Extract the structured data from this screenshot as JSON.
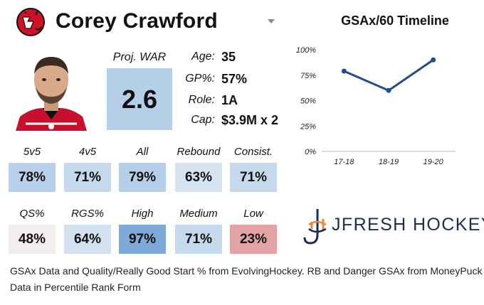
{
  "player": {
    "name": "Corey Crawford",
    "proj_war_label": "Proj. WAR",
    "proj_war": "2.6"
  },
  "info": {
    "age_label": "Age:",
    "age": "35",
    "gp_label": "GP%:",
    "gp": "57%",
    "role_label": "Role:",
    "role": "1A",
    "cap_label": "Cap:",
    "cap": "$3.9M x 2"
  },
  "stats_row1": [
    {
      "label": "5v5",
      "value": "78%",
      "color": "#b9d0ea"
    },
    {
      "label": "4v5",
      "value": "71%",
      "color": "#c5d8ec"
    },
    {
      "label": "All",
      "value": "79%",
      "color": "#b6cfe9"
    },
    {
      "label": "Rebound",
      "value": "63%",
      "color": "#d6e3f1"
    },
    {
      "label": "Consist.",
      "value": "71%",
      "color": "#c5d8ec"
    }
  ],
  "stats_row2": [
    {
      "label": "QS%",
      "value": "48%",
      "color": "#f2eeee"
    },
    {
      "label": "RGS%",
      "value": "64%",
      "color": "#d2e0f0"
    },
    {
      "label": "High",
      "value": "97%",
      "color": "#7ea9d8"
    },
    {
      "label": "Medium",
      "value": "71%",
      "color": "#c5d8ec"
    },
    {
      "label": "Low",
      "value": "23%",
      "color": "#e3a3a4"
    }
  ],
  "war_box_color": "#b6cfe9",
  "brand": {
    "text": "JFRESH HOCKEY",
    "logo_icon": "jfresh-logo-icon",
    "team_logo_icon": "devils-logo-icon"
  },
  "footer": {
    "line1": "GSAx Data and Quality/Really Good Start % from EvolvingHockey. RB and Danger GSAx from MoneyPuck",
    "line2": "Data in Percentile Rank Form"
  },
  "chart_data": {
    "type": "line",
    "title": "GSAx/60 Timeline",
    "categories": [
      "17-18",
      "18-19",
      "19-20"
    ],
    "values": [
      79,
      60,
      90
    ],
    "y_ticks": [
      "0%",
      "25%",
      "50%",
      "75%",
      "100%"
    ],
    "ylim": [
      0,
      100
    ],
    "line_color": "#1f4e8a",
    "grid": false
  }
}
